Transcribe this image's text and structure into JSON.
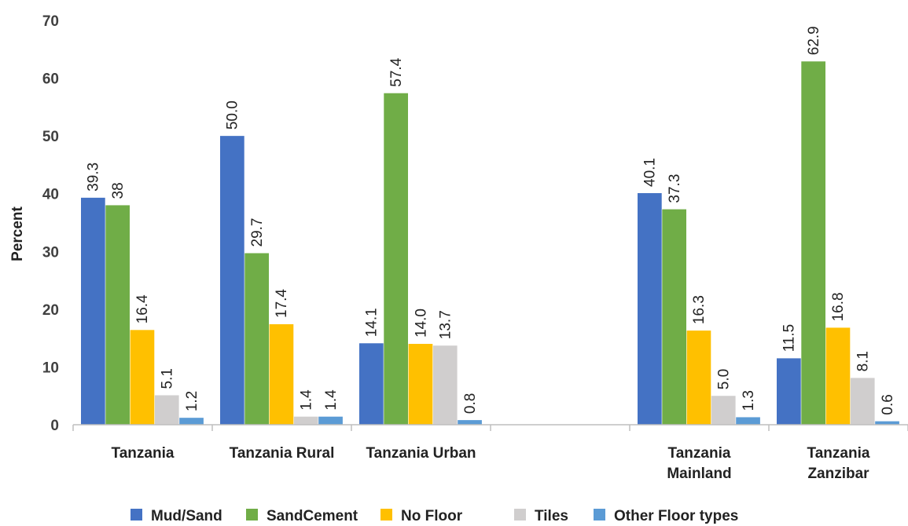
{
  "chart_data": {
    "type": "bar",
    "ylabel": "Percent",
    "xlabel": "",
    "ylim": [
      0,
      70
    ],
    "yticks": [
      0,
      10,
      20,
      30,
      40,
      50,
      60,
      70
    ],
    "categories": [
      [
        "Tanzania"
      ],
      [
        "Tanzania Rural"
      ],
      [
        "Tanzania Urban"
      ],
      [],
      [
        "Tanzania",
        "Mainland"
      ],
      [
        "Tanzania",
        "Zanzibar"
      ]
    ],
    "series": [
      {
        "name": "Mud/Sand",
        "color": "#4472C4",
        "values": [
          39.3,
          50.0,
          14.1,
          null,
          40.1,
          11.5
        ],
        "labels": [
          "39.3",
          "50.0",
          "14.1",
          "",
          "40.1",
          "11.5"
        ]
      },
      {
        "name": "SandCement",
        "color": "#70AD47",
        "values": [
          38,
          29.7,
          57.4,
          null,
          37.3,
          62.9
        ],
        "labels": [
          "38",
          "29.7",
          "57.4",
          "",
          "37.3",
          "62.9"
        ]
      },
      {
        "name": "No Floor",
        "color": "#FFC000",
        "values": [
          16.4,
          17.4,
          14.0,
          null,
          16.3,
          16.8
        ],
        "labels": [
          "16.4",
          "17.4",
          "14.0",
          "",
          "16.3",
          "16.8"
        ]
      },
      {
        "name": "Tiles",
        "color": "#D0CECE",
        "values": [
          5.1,
          1.4,
          13.7,
          null,
          5.0,
          8.1
        ],
        "labels": [
          "5.1",
          "1.4",
          "13.7",
          "",
          "5.0",
          "8.1"
        ]
      },
      {
        "name": "Other Floor types",
        "color": "#5B9BD5",
        "values": [
          1.2,
          1.4,
          0.8,
          null,
          1.3,
          0.6
        ],
        "labels": [
          "1.2",
          "1.4",
          "0.8",
          "",
          "1.3",
          "0.6"
        ]
      }
    ],
    "grid": false,
    "legend_position": "bottom"
  }
}
